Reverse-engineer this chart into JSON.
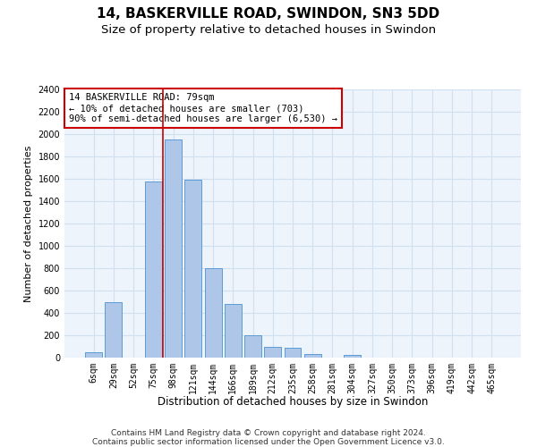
{
  "title": "14, BASKERVILLE ROAD, SWINDON, SN3 5DD",
  "subtitle": "Size of property relative to detached houses in Swindon",
  "xlabel": "Distribution of detached houses by size in Swindon",
  "ylabel": "Number of detached properties",
  "categories": [
    "6sqm",
    "29sqm",
    "52sqm",
    "75sqm",
    "98sqm",
    "121sqm",
    "144sqm",
    "166sqm",
    "189sqm",
    "212sqm",
    "235sqm",
    "258sqm",
    "281sqm",
    "304sqm",
    "327sqm",
    "350sqm",
    "373sqm",
    "396sqm",
    "419sqm",
    "442sqm",
    "465sqm"
  ],
  "values": [
    50,
    500,
    0,
    1580,
    1950,
    1590,
    800,
    480,
    200,
    95,
    85,
    30,
    0,
    25,
    0,
    0,
    0,
    0,
    0,
    0,
    0
  ],
  "bar_color": "#aec6e8",
  "bar_edge_color": "#5b9bd5",
  "grid_color": "#d0e0f0",
  "annotation_box_color": "#cc0000",
  "vline_x_index": 3,
  "vline_color": "#cc0000",
  "annotation_text": "14 BASKERVILLE ROAD: 79sqm\n← 10% of detached houses are smaller (703)\n90% of semi-detached houses are larger (6,530) →",
  "ylim": [
    0,
    2400
  ],
  "yticks": [
    0,
    200,
    400,
    600,
    800,
    1000,
    1200,
    1400,
    1600,
    1800,
    2000,
    2200,
    2400
  ],
  "footer_line1": "Contains HM Land Registry data © Crown copyright and database right 2024.",
  "footer_line2": "Contains public sector information licensed under the Open Government Licence v3.0.",
  "title_fontsize": 11,
  "subtitle_fontsize": 9.5,
  "axis_label_fontsize": 8,
  "tick_fontsize": 7,
  "footer_fontsize": 6.5,
  "annotation_fontsize": 7.5,
  "background_color": "#ffffff",
  "plot_bg_color": "#eef4fb"
}
